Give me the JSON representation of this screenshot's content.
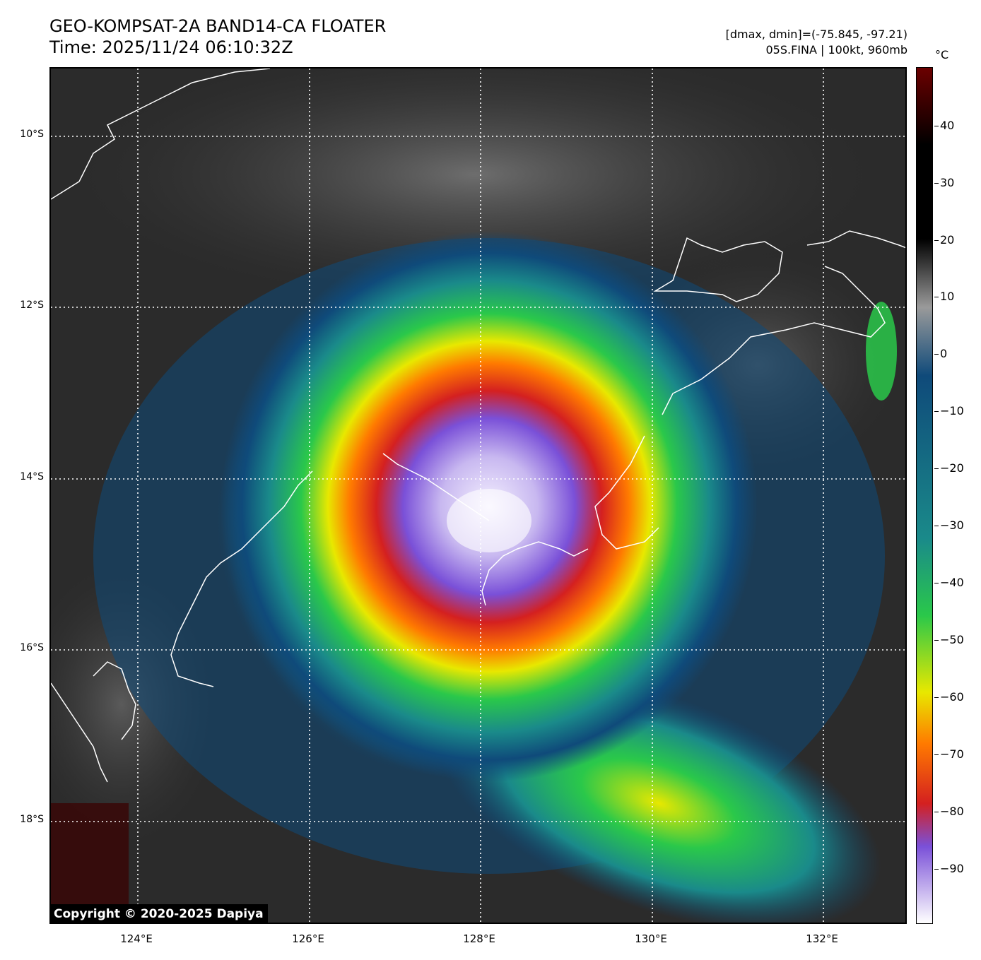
{
  "header": {
    "title_line1": "GEO-KOMPSAT-2A BAND14-CA FLOATER",
    "title_line2": "Time: 2025/11/24 06:10:32Z",
    "info_line1": "[dmax, dmin]=(-75.845, -97.21)",
    "info_line2": "05S.FINA | 100kt, 960mb"
  },
  "map": {
    "lat_labels": [
      "10°S",
      "12°S",
      "14°S",
      "16°S",
      "18°S"
    ],
    "lon_labels": [
      "124°E",
      "126°E",
      "128°E",
      "130°E",
      "132°E"
    ],
    "copyright": "Copyright © 2020-2025 Dapiya"
  },
  "colorbar": {
    "unit": "°C",
    "tick_labels": [
      "40",
      "30",
      "20",
      "10",
      "0",
      "−10",
      "−20",
      "−30",
      "−40",
      "−50",
      "−60",
      "−70",
      "−80",
      "−90"
    ],
    "colors": {
      "warm_top": "#6b0000",
      "black": "#000000",
      "gray": "#9a9a9a",
      "blue": "#0f4a7a",
      "teal": "#1a8a8a",
      "green": "#2ac84a",
      "yellow": "#e8e800",
      "orange": "#ff7a00",
      "red": "#d42020",
      "purple": "#7a50d8",
      "white": "#ffffff"
    }
  }
}
